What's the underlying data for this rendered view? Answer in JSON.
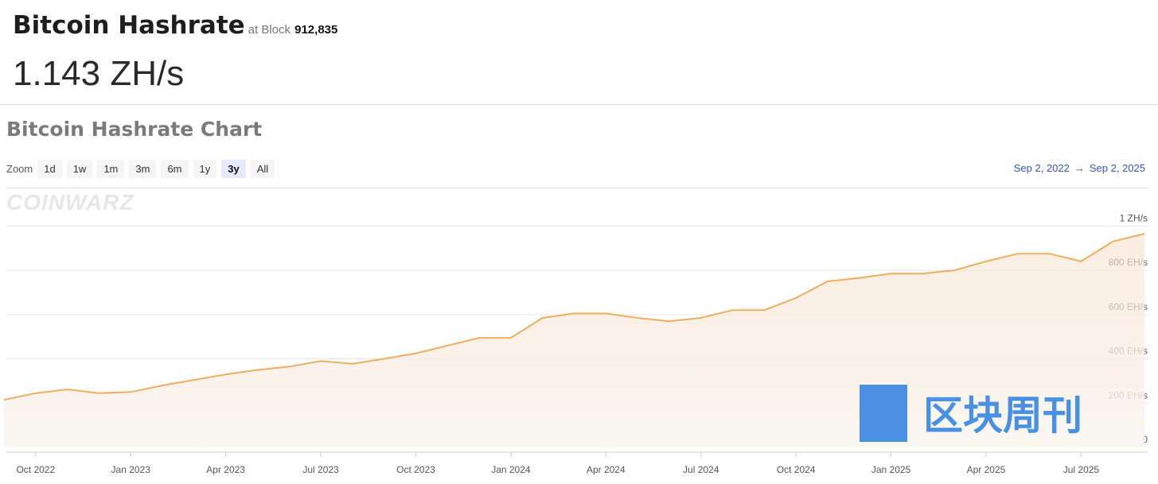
{
  "header": {
    "title": "Bitcoin Hashrate",
    "block_prefix": "at Block",
    "block": "912,835",
    "value": "1.143 ZH/s"
  },
  "zoom": {
    "label": "Zoom",
    "options": [
      "1d",
      "1w",
      "1m",
      "3m",
      "6m",
      "1y",
      "3y",
      "All"
    ],
    "selected": "3y"
  },
  "range": {
    "from": "Sep 2, 2022",
    "arrow": "→",
    "to": "Sep 2, 2025"
  },
  "watermarks": [
    "COINWARZ",
    "区块周刊"
  ],
  "chart_data": {
    "type": "area",
    "title": "Bitcoin Hashrate Chart",
    "categories": [
      null,
      "Oct 2022",
      null,
      null,
      "Jan 2023",
      null,
      null,
      "Apr 2023",
      null,
      null,
      "Jul 2023",
      null,
      null,
      "Oct 2023",
      null,
      null,
      "Jan 2024",
      null,
      null,
      "Apr 2024",
      null,
      null,
      "Jul 2024",
      null,
      null,
      "Oct 2024",
      null,
      null,
      "Jan 2025",
      null,
      null,
      "Apr 2025",
      null,
      null,
      "Jul 2025",
      null,
      null
    ],
    "series": [
      {
        "name": "Hashrate",
        "color": "#f0ad5e",
        "values": [
          215,
          245,
          262,
          245,
          250,
          280,
          305,
          330,
          350,
          365,
          390,
          378,
          400,
          425,
          460,
          495,
          495,
          585,
          605,
          605,
          585,
          570,
          585,
          620,
          620,
          675,
          750,
          765,
          785,
          785,
          800,
          840,
          875,
          875,
          840,
          930,
          965
        ]
      }
    ],
    "ylim": [
      0,
      1170
    ],
    "yticks": [
      0,
      {
        "value": 200,
        "label": "200 EH/s"
      },
      {
        "value": 400,
        "label": "400 EH/s"
      },
      {
        "value": 600,
        "label": "600 EH/s"
      },
      {
        "value": 800,
        "label": "800 EH/s"
      },
      {
        "value": 1000,
        "label": "1 ZH/s"
      }
    ],
    "grid": true
  }
}
